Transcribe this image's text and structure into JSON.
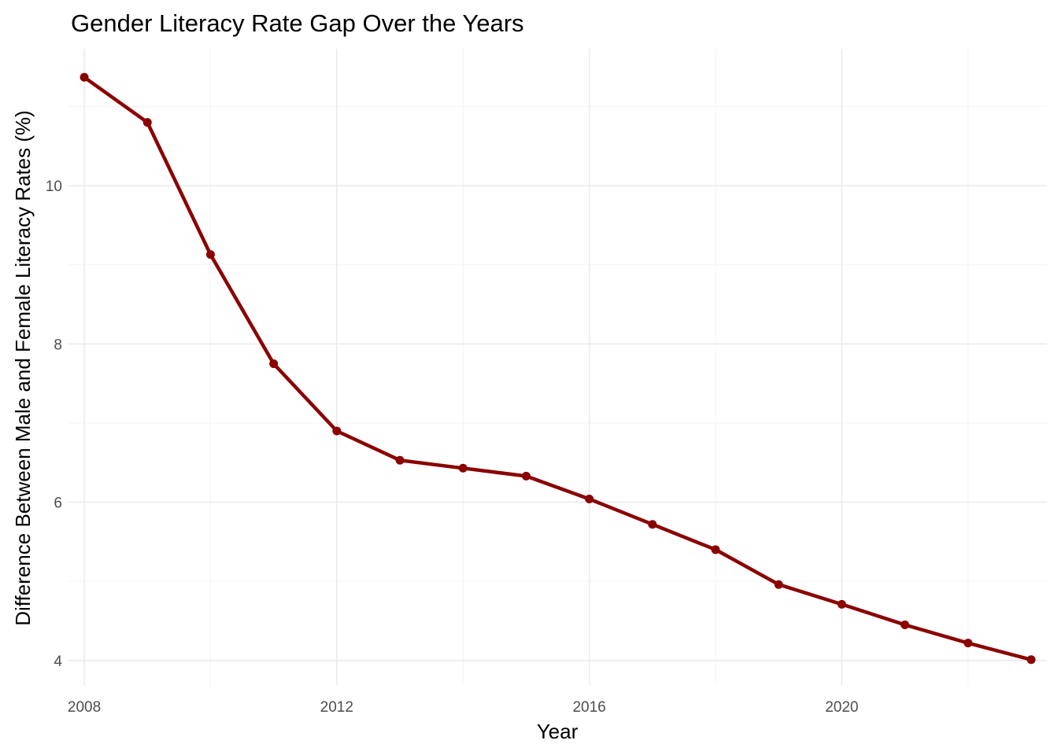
{
  "chart_data": {
    "type": "line",
    "title": "Gender Literacy Rate Gap Over the Years",
    "xlabel": "Year",
    "ylabel": "Difference Between Male and Female Literacy Rates (%)",
    "x": [
      2008,
      2009,
      2010,
      2011,
      2012,
      2013,
      2014,
      2015,
      2016,
      2017,
      2018,
      2019,
      2020,
      2021,
      2022,
      2023
    ],
    "series": [
      {
        "values": [
          11.37,
          10.8,
          9.13,
          7.75,
          6.9,
          6.53,
          6.43,
          6.33,
          6.04,
          5.72,
          5.4,
          4.96,
          4.71,
          4.45,
          4.22,
          4.01
        ],
        "color": "#8b0000"
      }
    ],
    "xlim": [
      2007.75,
      2023.25
    ],
    "ylim": [
      3.68,
      11.73
    ],
    "xticks": [
      2008,
      2012,
      2016,
      2020
    ],
    "xtick_labels": [
      "2008",
      "2012",
      "2016",
      "2020"
    ],
    "yticks": [
      4,
      6,
      8,
      10
    ],
    "ytick_labels": [
      "4",
      "6",
      "8",
      "10"
    ],
    "x_minor": [
      2010,
      2014,
      2018,
      2022
    ],
    "y_minor": [
      5,
      7,
      9,
      11
    ],
    "grid": true,
    "legend": "none"
  }
}
